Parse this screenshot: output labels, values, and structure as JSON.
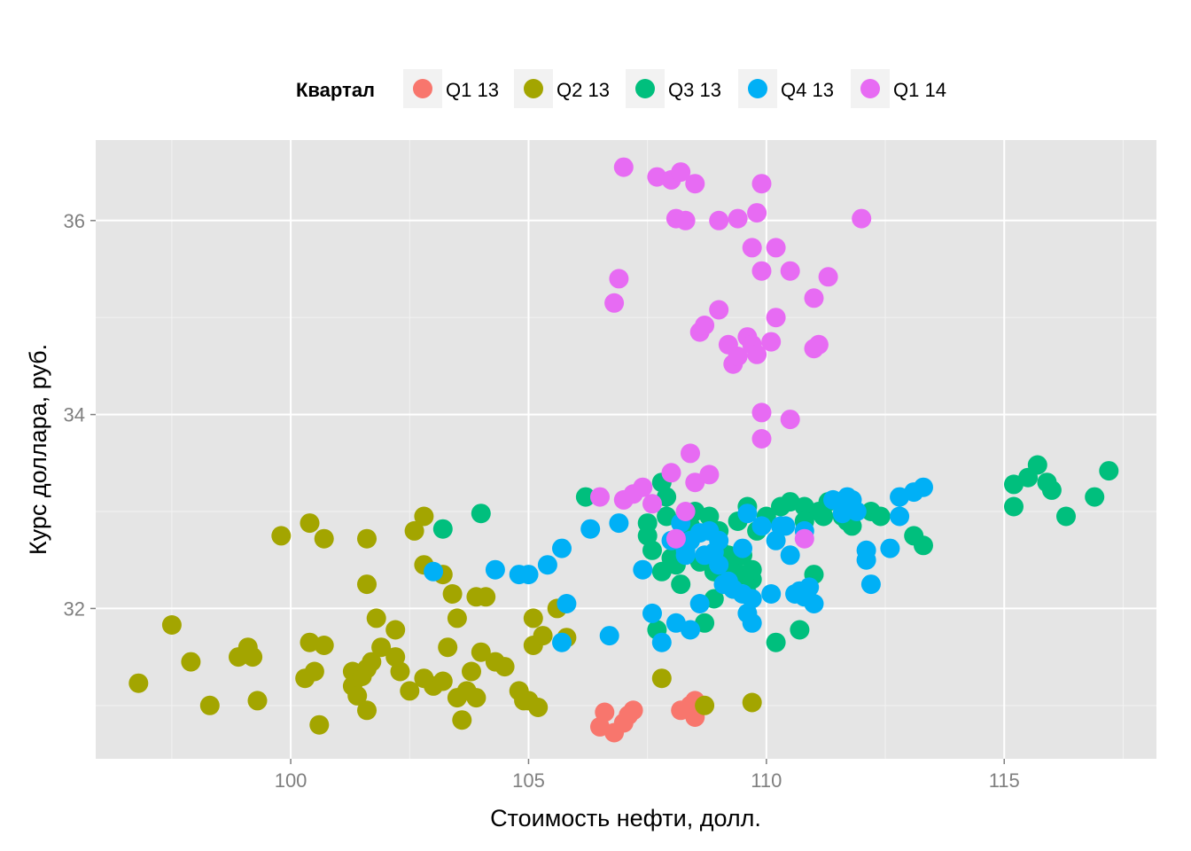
{
  "chart_data": {
    "type": "scatter",
    "xlabel": "Стоимость нефти, долл.",
    "ylabel": "Курс доллара, руб.",
    "xlim": [
      95.9,
      118.2
    ],
    "ylim": [
      30.45,
      36.83
    ],
    "x_ticks": [
      100,
      105,
      110,
      115
    ],
    "y_ticks": [
      32,
      34,
      36
    ],
    "grid": true,
    "background": "#E5E5E5",
    "legend": {
      "title": "Квартал",
      "position": "top"
    },
    "series": [
      {
        "name": "Q1 13",
        "color": "#F8766D",
        "points": [
          [
            106.5,
            30.78
          ],
          [
            106.6,
            30.93
          ],
          [
            106.8,
            30.72
          ],
          [
            107.0,
            30.82
          ],
          [
            107.1,
            30.9
          ],
          [
            107.2,
            30.95
          ],
          [
            108.2,
            30.95
          ],
          [
            108.4,
            31.0
          ],
          [
            108.5,
            30.88
          ],
          [
            108.5,
            31.05
          ]
        ]
      },
      {
        "name": "Q2 13",
        "color": "#A3A500",
        "points": [
          [
            96.8,
            31.23
          ],
          [
            97.5,
            31.83
          ],
          [
            97.9,
            31.45
          ],
          [
            98.3,
            31.0
          ],
          [
            98.9,
            31.5
          ],
          [
            99.1,
            31.6
          ],
          [
            99.2,
            31.5
          ],
          [
            99.3,
            31.05
          ],
          [
            99.8,
            32.75
          ],
          [
            100.3,
            31.28
          ],
          [
            100.4,
            32.88
          ],
          [
            100.4,
            31.65
          ],
          [
            100.5,
            31.35
          ],
          [
            100.6,
            30.8
          ],
          [
            100.7,
            32.72
          ],
          [
            100.7,
            31.62
          ],
          [
            101.3,
            31.35
          ],
          [
            101.3,
            31.2
          ],
          [
            101.4,
            31.1
          ],
          [
            101.5,
            31.3
          ],
          [
            101.6,
            32.25
          ],
          [
            101.6,
            31.38
          ],
          [
            101.6,
            32.72
          ],
          [
            101.6,
            30.95
          ],
          [
            101.7,
            31.45
          ],
          [
            101.8,
            31.9
          ],
          [
            101.9,
            31.6
          ],
          [
            102.2,
            31.78
          ],
          [
            102.2,
            31.5
          ],
          [
            102.3,
            31.35
          ],
          [
            102.5,
            31.15
          ],
          [
            102.6,
            32.8
          ],
          [
            102.8,
            32.95
          ],
          [
            102.8,
            31.28
          ],
          [
            102.8,
            32.45
          ],
          [
            103.0,
            31.2
          ],
          [
            103.2,
            31.25
          ],
          [
            103.2,
            32.35
          ],
          [
            103.3,
            31.6
          ],
          [
            103.4,
            32.15
          ],
          [
            103.5,
            31.9
          ],
          [
            103.5,
            31.08
          ],
          [
            103.6,
            30.85
          ],
          [
            103.7,
            31.15
          ],
          [
            103.8,
            31.35
          ],
          [
            103.9,
            32.12
          ],
          [
            103.9,
            31.08
          ],
          [
            104.0,
            31.55
          ],
          [
            104.1,
            32.12
          ],
          [
            104.3,
            31.45
          ],
          [
            104.5,
            31.4
          ],
          [
            104.8,
            31.15
          ],
          [
            104.9,
            31.05
          ],
          [
            105.0,
            31.05
          ],
          [
            105.1,
            31.9
          ],
          [
            105.1,
            31.62
          ],
          [
            105.2,
            30.98
          ],
          [
            105.3,
            31.72
          ],
          [
            105.6,
            32.0
          ],
          [
            105.8,
            31.7
          ],
          [
            107.8,
            31.28
          ],
          [
            108.7,
            31.0
          ],
          [
            109.7,
            31.03
          ]
        ]
      },
      {
        "name": "Q3 13",
        "color": "#00BF7D",
        "points": [
          [
            103.2,
            32.82
          ],
          [
            104.0,
            32.98
          ],
          [
            106.2,
            33.15
          ],
          [
            107.5,
            32.88
          ],
          [
            107.5,
            32.75
          ],
          [
            107.6,
            32.6
          ],
          [
            107.7,
            31.78
          ],
          [
            107.8,
            32.38
          ],
          [
            107.8,
            33.3
          ],
          [
            107.9,
            33.15
          ],
          [
            107.9,
            32.95
          ],
          [
            108.0,
            32.52
          ],
          [
            108.1,
            32.45
          ],
          [
            108.2,
            32.25
          ],
          [
            108.3,
            32.62
          ],
          [
            108.4,
            32.85
          ],
          [
            108.5,
            33.0
          ],
          [
            108.6,
            32.48
          ],
          [
            108.7,
            31.85
          ],
          [
            108.8,
            32.95
          ],
          [
            108.9,
            32.1
          ],
          [
            108.9,
            32.38
          ],
          [
            109.0,
            32.62
          ],
          [
            109.0,
            32.8
          ],
          [
            109.1,
            32.48
          ],
          [
            109.1,
            32.3
          ],
          [
            109.2,
            32.55
          ],
          [
            109.3,
            32.42
          ],
          [
            109.3,
            32.2
          ],
          [
            109.4,
            32.9
          ],
          [
            109.5,
            32.35
          ],
          [
            109.5,
            32.55
          ],
          [
            109.6,
            33.05
          ],
          [
            109.6,
            32.15
          ],
          [
            109.7,
            32.3
          ],
          [
            109.7,
            32.4
          ],
          [
            109.8,
            32.8
          ],
          [
            110.0,
            32.95
          ],
          [
            110.2,
            31.65
          ],
          [
            110.3,
            33.05
          ],
          [
            110.5,
            33.1
          ],
          [
            110.7,
            31.78
          ],
          [
            110.8,
            33.05
          ],
          [
            110.8,
            32.9
          ],
          [
            111.0,
            32.35
          ],
          [
            111.1,
            33.0
          ],
          [
            111.2,
            32.95
          ],
          [
            111.3,
            33.1
          ],
          [
            111.6,
            32.95
          ],
          [
            111.7,
            32.9
          ],
          [
            111.8,
            32.85
          ],
          [
            112.2,
            33.0
          ],
          [
            112.4,
            32.95
          ],
          [
            113.1,
            32.75
          ],
          [
            113.3,
            32.65
          ],
          [
            115.2,
            33.28
          ],
          [
            115.2,
            33.05
          ],
          [
            115.5,
            33.35
          ],
          [
            115.7,
            33.48
          ],
          [
            115.9,
            33.3
          ],
          [
            116.0,
            33.22
          ],
          [
            116.3,
            32.95
          ],
          [
            116.9,
            33.15
          ],
          [
            117.2,
            33.42
          ]
        ]
      },
      {
        "name": "Q4 13",
        "color": "#00B0F6",
        "points": [
          [
            103.0,
            32.38
          ],
          [
            104.3,
            32.4
          ],
          [
            104.8,
            32.35
          ],
          [
            105.0,
            32.35
          ],
          [
            105.4,
            32.45
          ],
          [
            105.7,
            32.62
          ],
          [
            105.7,
            31.65
          ],
          [
            105.8,
            32.05
          ],
          [
            106.3,
            32.82
          ],
          [
            106.7,
            31.72
          ],
          [
            106.9,
            32.88
          ],
          [
            107.4,
            32.4
          ],
          [
            107.6,
            31.95
          ],
          [
            107.8,
            31.65
          ],
          [
            108.0,
            32.7
          ],
          [
            108.1,
            31.85
          ],
          [
            108.2,
            32.88
          ],
          [
            108.3,
            32.55
          ],
          [
            108.3,
            32.6
          ],
          [
            108.4,
            32.7
          ],
          [
            108.4,
            31.78
          ],
          [
            108.6,
            32.05
          ],
          [
            108.6,
            32.78
          ],
          [
            108.7,
            32.55
          ],
          [
            108.8,
            32.8
          ],
          [
            108.9,
            32.58
          ],
          [
            109.0,
            32.7
          ],
          [
            109.0,
            32.45
          ],
          [
            109.1,
            32.25
          ],
          [
            109.2,
            32.28
          ],
          [
            109.3,
            32.2
          ],
          [
            109.5,
            32.62
          ],
          [
            109.5,
            32.15
          ],
          [
            109.6,
            32.98
          ],
          [
            109.6,
            31.95
          ],
          [
            109.7,
            32.1
          ],
          [
            109.9,
            32.85
          ],
          [
            110.1,
            32.15
          ],
          [
            110.2,
            32.7
          ],
          [
            110.3,
            32.85
          ],
          [
            110.4,
            32.85
          ],
          [
            110.5,
            32.55
          ],
          [
            110.6,
            32.15
          ],
          [
            110.7,
            32.18
          ],
          [
            110.8,
            32.8
          ],
          [
            110.8,
            32.12
          ],
          [
            110.9,
            32.22
          ],
          [
            111.0,
            32.05
          ],
          [
            111.4,
            33.12
          ],
          [
            111.6,
            32.98
          ],
          [
            111.7,
            33.15
          ],
          [
            111.7,
            33.05
          ],
          [
            111.8,
            33.12
          ],
          [
            111.9,
            33.0
          ],
          [
            112.1,
            32.5
          ],
          [
            112.1,
            32.6
          ],
          [
            112.2,
            32.25
          ],
          [
            112.6,
            32.62
          ],
          [
            112.8,
            33.15
          ],
          [
            112.8,
            32.95
          ],
          [
            113.1,
            33.2
          ],
          [
            113.3,
            33.25
          ],
          [
            109.7,
            31.85
          ]
        ]
      },
      {
        "name": "Q1 14",
        "color": "#E76BF3",
        "points": [
          [
            106.5,
            33.15
          ],
          [
            106.8,
            35.15
          ],
          [
            106.9,
            35.4
          ],
          [
            107.0,
            36.55
          ],
          [
            107.0,
            33.12
          ],
          [
            107.2,
            33.18
          ],
          [
            107.4,
            33.25
          ],
          [
            107.6,
            33.08
          ],
          [
            107.7,
            36.45
          ],
          [
            108.0,
            36.42
          ],
          [
            108.0,
            33.4
          ],
          [
            108.1,
            36.02
          ],
          [
            108.1,
            32.72
          ],
          [
            108.2,
            36.5
          ],
          [
            108.3,
            33.0
          ],
          [
            108.3,
            36.0
          ],
          [
            108.4,
            33.6
          ],
          [
            108.5,
            36.38
          ],
          [
            108.5,
            33.3
          ],
          [
            108.6,
            34.85
          ],
          [
            108.7,
            34.92
          ],
          [
            108.8,
            33.38
          ],
          [
            109.0,
            36.0
          ],
          [
            109.0,
            35.08
          ],
          [
            109.2,
            34.72
          ],
          [
            109.3,
            34.52
          ],
          [
            109.4,
            34.6
          ],
          [
            109.4,
            36.02
          ],
          [
            109.6,
            34.8
          ],
          [
            109.7,
            35.72
          ],
          [
            109.7,
            34.72
          ],
          [
            109.8,
            34.62
          ],
          [
            109.8,
            36.08
          ],
          [
            109.9,
            35.48
          ],
          [
            109.9,
            34.02
          ],
          [
            109.9,
            33.75
          ],
          [
            109.9,
            36.38
          ],
          [
            110.1,
            34.75
          ],
          [
            110.2,
            35.72
          ],
          [
            110.2,
            35.0
          ],
          [
            110.5,
            35.48
          ],
          [
            110.5,
            33.95
          ],
          [
            110.8,
            32.72
          ],
          [
            111.0,
            34.68
          ],
          [
            111.0,
            35.2
          ],
          [
            111.1,
            34.72
          ],
          [
            111.3,
            35.42
          ],
          [
            112.0,
            36.02
          ]
        ]
      }
    ]
  }
}
